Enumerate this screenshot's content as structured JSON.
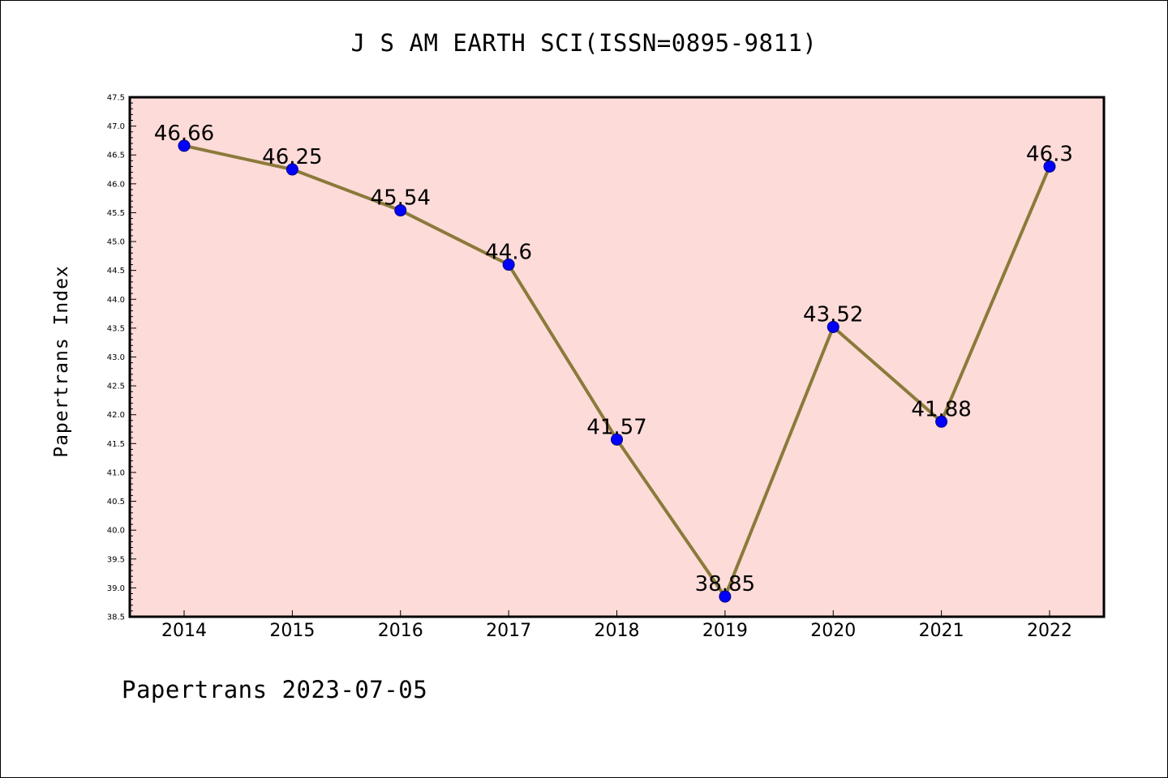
{
  "chart_data": {
    "type": "line",
    "title": "J S AM EARTH SCI(ISSN=0895-9811)",
    "xlabel": "",
    "ylabel": "Papertrans Index",
    "footer": "Papertrans 2023-07-05",
    "categories": [
      "2014",
      "2015",
      "2016",
      "2017",
      "2018",
      "2019",
      "2020",
      "2021",
      "2022"
    ],
    "series": [
      {
        "values": [
          46.66,
          46.25,
          45.54,
          44.6,
          41.57,
          38.85,
          43.52,
          41.88,
          46.3
        ],
        "labels": [
          "46.66",
          "46.25",
          "45.54",
          "44.6",
          "41.57",
          "38.85",
          "43.52",
          "41.88",
          "46.3"
        ]
      }
    ],
    "ylim": [
      38.5,
      47.5
    ],
    "yticks": [
      "38.5",
      "39.0",
      "39.5",
      "40.0",
      "40.5",
      "41.0",
      "41.5",
      "42.0",
      "42.5",
      "43.0",
      "43.5",
      "44.0",
      "44.5",
      "45.0",
      "45.5",
      "46.0",
      "46.5",
      "47.0",
      "47.5"
    ],
    "grid": false,
    "legend": "none",
    "colors": {
      "plot_background": "#fddbd9",
      "line": "#8b7a3a",
      "marker": "#0000ff",
      "axes": "#000000"
    }
  }
}
